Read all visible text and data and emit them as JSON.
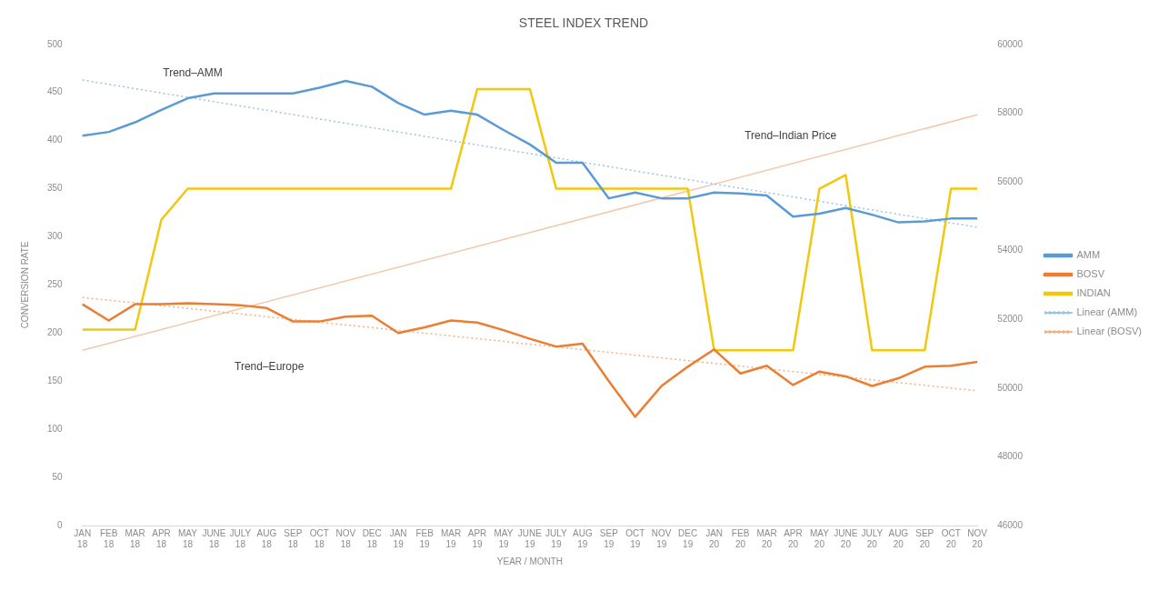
{
  "chart_data": {
    "type": "line",
    "title": "STEEL INDEX TREND",
    "xlabel": "YEAR / MONTH",
    "ylabel": "CONVERSION RATE",
    "categories": [
      "JAN 18",
      "FEB 18",
      "MAR 18",
      "APR 18",
      "MAY 18",
      "JUNE 18",
      "JULY 18",
      "AUG 18",
      "SEP 18",
      "OCT 18",
      "NOV 18",
      "DEC 18",
      "JAN 19",
      "FEB 19",
      "MAR 19",
      "APR 19",
      "MAY 19",
      "JUNE 19",
      "JULY 19",
      "AUG 19",
      "SEP 19",
      "OCT 19",
      "NOV 19",
      "DEC 19",
      "JAN 20",
      "FEB 20",
      "MAR 20",
      "APR 20",
      "MAY 20",
      "JUNE 20",
      "JULY 20",
      "AUG 20",
      "SEP 20",
      "OCT 20",
      "NOV 20"
    ],
    "series": [
      {
        "name": "AMM",
        "color": "#5b9bd5",
        "values": [
          405,
          409,
          419,
          432,
          444,
          449,
          449,
          449,
          449,
          455,
          462,
          456,
          439,
          427,
          431,
          427,
          411,
          396,
          377,
          377,
          340,
          346,
          340,
          340,
          346,
          345,
          343,
          321,
          324,
          330,
          323,
          315,
          316,
          319,
          319
        ]
      },
      {
        "name": "BOSV",
        "color": "#ed7d31",
        "values": [
          230,
          213,
          230,
          230,
          231,
          230,
          229,
          226,
          212,
          212,
          217,
          218,
          200,
          206,
          213,
          211,
          203,
          194,
          186,
          189,
          150,
          113,
          145,
          165,
          183,
          158,
          166,
          146,
          160,
          155,
          145,
          153,
          165,
          166,
          170
        ]
      },
      {
        "name": "INDIAN",
        "color": "#f2c80f",
        "axis": "y2",
        "values": [
          51700,
          51700,
          51700,
          54900,
          55800,
          55800,
          55800,
          55800,
          55800,
          55800,
          55800,
          55800,
          55800,
          55800,
          55800,
          58700,
          58700,
          58700,
          55800,
          55800,
          55800,
          55800,
          55800,
          55800,
          51100,
          51100,
          51100,
          51100,
          55800,
          56200,
          51100,
          51100,
          51100,
          55800,
          55800
        ]
      },
      {
        "name": "Linear (AMM)",
        "color": "#9dc3e6",
        "line_style": "dotted",
        "x": [
          "JAN 18",
          "NOV 20"
        ],
        "values": [
          463,
          310
        ]
      },
      {
        "name": "Linear (BOSV)",
        "color": "#f4b183",
        "line_style": "dotted",
        "x": [
          "JAN 18",
          "NOV 20"
        ],
        "values": [
          237,
          140
        ]
      },
      {
        "color": "#f4c7a8",
        "line_style": "solid",
        "axis": "y2",
        "x": [
          "JAN 18",
          "NOV 20"
        ],
        "values": [
          51100,
          57950
        ]
      }
    ],
    "ylim": [
      0,
      500
    ],
    "yticks": [
      0,
      50,
      100,
      150,
      200,
      250,
      300,
      350,
      400,
      450,
      500
    ],
    "y2lim": [
      46000,
      60000
    ],
    "y2ticks": [
      46000,
      48000,
      50000,
      52000,
      54000,
      56000,
      58000,
      60000
    ],
    "annotations": [
      "Trend–AMM",
      "Trend–Indian Price",
      "Trend–Europe"
    ],
    "legend": "right",
    "grid": false,
    "marker": "none",
    "line_style": "solid"
  }
}
